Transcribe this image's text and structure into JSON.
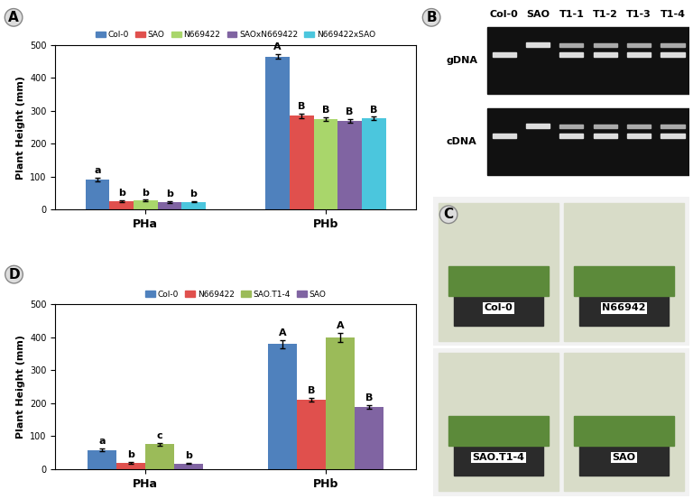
{
  "chart_data": [
    {
      "type": "bar",
      "panel": "A",
      "y_label": "Plant Height (mm)",
      "categories": [
        "PHa",
        "PHb"
      ],
      "ylim": [
        0,
        500
      ],
      "yticks": [
        0,
        100,
        200,
        300,
        400,
        500
      ],
      "legend": "upper center",
      "series": [
        {
          "name": "Col-0",
          "color": "#4f81bd",
          "values": [
            92,
            465
          ],
          "errors": [
            5,
            8
          ],
          "significance_labels": [
            "a",
            "A"
          ]
        },
        {
          "name": "SAO",
          "color": "#e0504d",
          "values": [
            25,
            285
          ],
          "errors": [
            3,
            7
          ],
          "significance_labels": [
            "b",
            "B"
          ]
        },
        {
          "name": "N669422",
          "color": "#a9d66b",
          "values": [
            28,
            275
          ],
          "errors": [
            2,
            5
          ],
          "significance_labels": [
            "b",
            "B"
          ]
        },
        {
          "name": "SAOxN669422",
          "color": "#8064a2",
          "values": [
            23,
            270
          ],
          "errors": [
            2,
            6
          ],
          "significance_labels": [
            "b",
            "B"
          ]
        },
        {
          "name": "N669422xSAO",
          "color": "#4bc6dd",
          "values": [
            24,
            277
          ],
          "errors": [
            2,
            5
          ],
          "significance_labels": [
            "b",
            "B"
          ]
        }
      ]
    },
    {
      "type": "bar",
      "panel": "D",
      "y_label": "Plant Height (mm)",
      "categories": [
        "PHa",
        "PHb"
      ],
      "ylim": [
        0,
        500
      ],
      "yticks": [
        0,
        100,
        200,
        300,
        400,
        500
      ],
      "legend": "upper center",
      "series": [
        {
          "name": "Col-0",
          "color": "#4f81bd",
          "values": [
            58,
            380
          ],
          "errors": [
            4,
            12
          ],
          "significance_labels": [
            "a",
            "A"
          ]
        },
        {
          "name": "N669422",
          "color": "#e0504d",
          "values": [
            18,
            210
          ],
          "errors": [
            3,
            6
          ],
          "significance_labels": [
            "b",
            "B"
          ]
        },
        {
          "name": "SAO.T1-4",
          "color": "#9bbb59",
          "values": [
            75,
            400
          ],
          "errors": [
            4,
            14
          ],
          "significance_labels": [
            "c",
            "A"
          ]
        },
        {
          "name": "SAO",
          "color": "#8064a2",
          "values": [
            17,
            188
          ],
          "errors": [
            2,
            6
          ],
          "significance_labels": [
            "b",
            "B"
          ]
        }
      ]
    }
  ],
  "gel": {
    "panel": "B",
    "lanes": [
      "Col-0",
      "SAO",
      "T1-1",
      "T1-2",
      "T1-3",
      "T1-4"
    ],
    "rows": [
      "gDNA",
      "cDNA"
    ]
  },
  "photo": {
    "panel": "C",
    "plants": [
      "Col-0",
      "N66942",
      "SAO.T1-4",
      "SAO"
    ]
  }
}
